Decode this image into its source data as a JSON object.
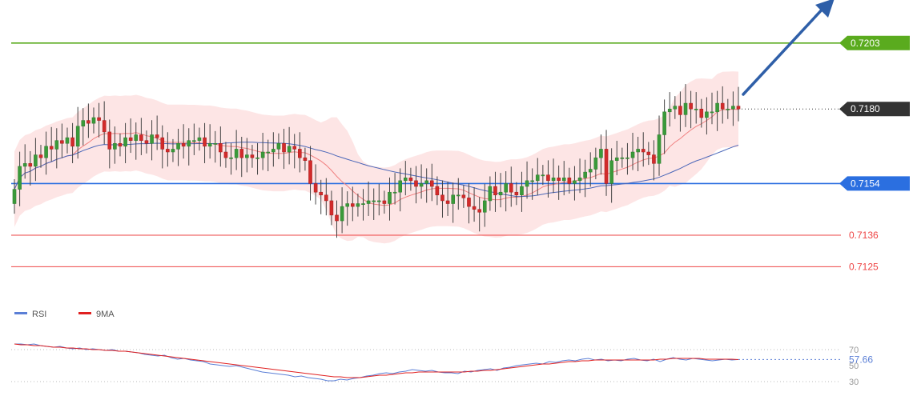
{
  "chart_data": {
    "type": "line",
    "subtype": "candlestick",
    "price_axis": {
      "min": 0.7112,
      "max": 0.7218
    },
    "levels": [
      {
        "name": "resistance",
        "value": 0.7203,
        "label": "0.7203",
        "color": "#5aab1e",
        "badge": true
      },
      {
        "name": "current",
        "value": 0.718,
        "label": "0.7180",
        "color": "#333333",
        "badge": true,
        "dotted": true
      },
      {
        "name": "pivot",
        "value": 0.7154,
        "label": "0.7154",
        "color": "#2b6fe0",
        "badge": true
      },
      {
        "name": "support-1",
        "value": 0.7136,
        "label": "0.7136",
        "color": "#ee4444",
        "badge": false
      },
      {
        "name": "support-2",
        "value": 0.7125,
        "label": "0.7125",
        "color": "#ee4444",
        "badge": false
      }
    ],
    "trend_arrow": {
      "direction": "up",
      "color": "#2f5fa8"
    },
    "close_series": [
      0.7152,
      0.716,
      0.7161,
      0.716,
      0.7164,
      0.7163,
      0.7167,
      0.7166,
      0.7169,
      0.7168,
      0.717,
      0.7167,
      0.7174,
      0.7176,
      0.7175,
      0.7177,
      0.7176,
      0.7172,
      0.7166,
      0.7168,
      0.7167,
      0.717,
      0.7169,
      0.7171,
      0.7169,
      0.7168,
      0.7171,
      0.717,
      0.7166,
      0.7165,
      0.7166,
      0.7168,
      0.7167,
      0.7169,
      0.7169,
      0.717,
      0.7167,
      0.7168,
      0.7168,
      0.7165,
      0.7163,
      0.7163,
      0.7166,
      0.7163,
      0.7164,
      0.7163,
      0.7163,
      0.7165,
      0.7165,
      0.7166,
      0.7168,
      0.7165,
      0.7167,
      0.7166,
      0.7163,
      0.7162,
      0.7154,
      0.7151,
      0.715,
      0.7148,
      0.7143,
      0.7141,
      0.7146,
      0.7147,
      0.7146,
      0.7147,
      0.7147,
      0.7148,
      0.7148,
      0.7148,
      0.7147,
      0.7151,
      0.7151,
      0.7155,
      0.7156,
      0.7155,
      0.7153,
      0.7154,
      0.7155,
      0.7153,
      0.715,
      0.7148,
      0.7147,
      0.715,
      0.715,
      0.7149,
      0.7146,
      0.7145,
      0.7144,
      0.7148,
      0.7153,
      0.715,
      0.7151,
      0.7154,
      0.7151,
      0.715,
      0.7153,
      0.7155,
      0.7155,
      0.7157,
      0.7157,
      0.7155,
      0.7156,
      0.7155,
      0.7156,
      0.7154,
      0.7155,
      0.7156,
      0.7158,
      0.7159,
      0.7163,
      0.7166,
      0.7154,
      0.7162,
      0.7163,
      0.7163,
      0.7163,
      0.7165,
      0.7166,
      0.7165,
      0.7164,
      0.7161,
      0.7171,
      0.7179,
      0.718,
      0.7181,
      0.7178,
      0.7182,
      0.718,
      0.718,
      0.7177,
      0.7179,
      0.7179,
      0.7182,
      0.718,
      0.718,
      0.7181,
      0.718
    ],
    "indicators": {
      "bollinger_ma_color": "#f08080",
      "long_ma_color": "#4a66b8",
      "band_color": "#fde0e0"
    },
    "rsi_panel": {
      "legend": [
        {
          "name": "RSI",
          "color": "#5b7fd6"
        },
        {
          "name": "9MA",
          "color": "#e02020"
        }
      ],
      "ticks": [
        "70",
        "50",
        "30"
      ],
      "current_label": "57.66",
      "current_value": 57.66,
      "rsi_values": [
        77,
        77,
        76,
        77,
        75,
        74,
        73,
        74,
        72,
        71,
        72,
        70,
        71,
        70,
        69,
        70,
        68,
        68,
        67,
        66,
        64,
        63,
        62,
        63,
        60,
        58,
        59,
        57,
        56,
        55,
        52,
        51,
        50,
        49,
        50,
        48,
        46,
        44,
        42,
        41,
        40,
        39,
        38,
        36,
        37,
        35,
        34,
        33,
        31,
        31,
        33,
        32,
        34,
        35,
        37,
        38,
        40,
        41,
        40,
        42,
        43,
        45,
        44,
        43,
        44,
        42,
        41,
        41,
        40,
        43,
        42,
        44,
        45,
        46,
        44,
        47,
        48,
        50,
        51,
        52,
        53,
        52,
        55,
        54,
        56,
        57,
        56,
        58,
        59,
        57,
        58,
        56,
        57,
        56,
        58,
        59,
        57,
        56,
        58,
        55,
        58,
        60,
        58,
        57,
        59,
        58,
        57,
        56,
        57,
        58,
        57,
        57.66
      ],
      "ma_values": [
        77,
        76,
        76,
        75,
        75,
        74,
        73,
        73,
        72,
        72,
        71,
        71,
        70,
        70,
        69,
        69,
        68,
        68,
        67,
        66,
        65,
        64,
        63,
        62,
        61,
        60,
        59,
        58,
        57,
        56,
        55,
        54,
        53,
        52,
        51,
        50,
        49,
        48,
        47,
        46,
        45,
        44,
        43,
        42,
        41,
        40,
        39,
        38,
        37,
        36,
        36,
        35,
        35,
        35,
        36,
        37,
        38,
        38,
        39,
        40,
        41,
        41,
        42,
        42,
        42,
        42,
        42,
        42,
        42,
        42,
        43,
        43,
        44,
        44,
        45,
        46,
        47,
        48,
        49,
        50,
        51,
        52,
        52,
        53,
        54,
        55,
        55,
        56,
        56,
        57,
        57,
        57,
        57,
        57,
        57,
        57,
        57,
        57,
        57,
        58,
        58,
        59,
        59,
        59,
        59,
        59,
        58,
        58,
        58,
        58,
        58,
        57.5
      ]
    }
  }
}
